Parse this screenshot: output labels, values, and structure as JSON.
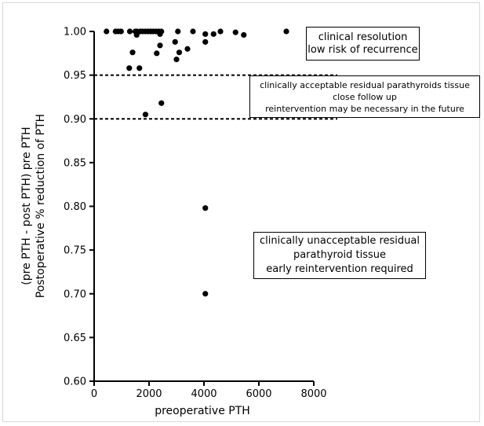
{
  "chart_data": {
    "type": "scatter",
    "xlabel": "preoperative PTH",
    "ylabel_line1": "(pre PTH - post PTH) pre PTH",
    "ylabel_line2": "Postoperative % reduction of PTH",
    "xlim": [
      0,
      8000
    ],
    "ylim": [
      0.6,
      1.0
    ],
    "x_ticks": [
      "0",
      "2000",
      "4000",
      "6000",
      "8000"
    ],
    "y_ticks": [
      "0.60",
      "0.65",
      "0.70",
      "0.75",
      "0.80",
      "0.85",
      "0.90",
      "0.95",
      "1.00"
    ],
    "reference_lines": [
      0.95,
      0.9
    ],
    "annotations": {
      "top": [
        "clinical resolution",
        "low risk of recurrence"
      ],
      "middle": [
        "clinically acceptable residual parathyroids tissue",
        "close follow up",
        "reintervention may be necessary in the future"
      ],
      "bottom": [
        "clinically unacceptable residual",
        "parathyroid tissue",
        "early reintervention required"
      ]
    },
    "points": [
      {
        "x": 450,
        "y": 1.0
      },
      {
        "x": 780,
        "y": 1.0
      },
      {
        "x": 880,
        "y": 1.0
      },
      {
        "x": 980,
        "y": 1.0
      },
      {
        "x": 1300,
        "y": 1.0
      },
      {
        "x": 1500,
        "y": 1.0
      },
      {
        "x": 1560,
        "y": 1.0
      },
      {
        "x": 1680,
        "y": 1.0
      },
      {
        "x": 1770,
        "y": 1.0
      },
      {
        "x": 1870,
        "y": 1.0
      },
      {
        "x": 1970,
        "y": 1.0
      },
      {
        "x": 2060,
        "y": 1.0
      },
      {
        "x": 2150,
        "y": 1.0
      },
      {
        "x": 2250,
        "y": 1.0
      },
      {
        "x": 2350,
        "y": 1.0
      },
      {
        "x": 2450,
        "y": 1.0
      },
      {
        "x": 3050,
        "y": 1.0
      },
      {
        "x": 3600,
        "y": 1.0
      },
      {
        "x": 4600,
        "y": 1.0
      },
      {
        "x": 5150,
        "y": 0.999
      },
      {
        "x": 7000,
        "y": 1.0
      },
      {
        "x": 1550,
        "y": 0.996
      },
      {
        "x": 2400,
        "y": 0.997
      },
      {
        "x": 4050,
        "y": 0.997
      },
      {
        "x": 4350,
        "y": 0.997
      },
      {
        "x": 5450,
        "y": 0.996
      },
      {
        "x": 1400,
        "y": 0.976
      },
      {
        "x": 2280,
        "y": 0.975
      },
      {
        "x": 3100,
        "y": 0.976
      },
      {
        "x": 2950,
        "y": 0.988
      },
      {
        "x": 4050,
        "y": 0.988
      },
      {
        "x": 3400,
        "y": 0.98
      },
      {
        "x": 2400,
        "y": 0.984
      },
      {
        "x": 1280,
        "y": 0.958
      },
      {
        "x": 1650,
        "y": 0.958
      },
      {
        "x": 3000,
        "y": 0.968
      },
      {
        "x": 2450,
        "y": 0.918
      },
      {
        "x": 1870,
        "y": 0.905
      },
      {
        "x": 4050,
        "y": 0.798
      },
      {
        "x": 4050,
        "y": 0.7
      }
    ]
  }
}
